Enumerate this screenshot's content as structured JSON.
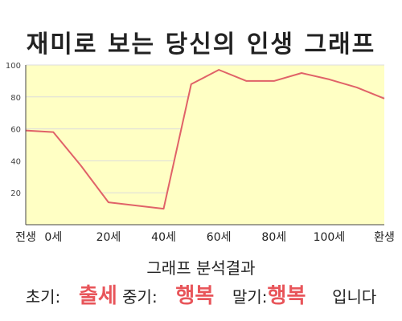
{
  "title": "재미로 보는 당신의 인생 그래프",
  "chart_data": {
    "type": "area",
    "categories": [
      "전생",
      "0세",
      "20세",
      "40세",
      "60세",
      "80세",
      "100세",
      "환생"
    ],
    "x": [
      -10,
      0,
      20,
      40,
      60,
      80,
      100,
      120
    ],
    "series": [
      {
        "x": [
          -10,
          0,
          10,
          20,
          30,
          40,
          50,
          60,
          70,
          80,
          90,
          100,
          110,
          120
        ],
        "values": [
          59,
          58,
          37,
          14,
          12,
          10,
          88,
          97,
          90,
          90,
          95,
          91,
          86,
          79
        ]
      }
    ],
    "y_ticks": [
      20,
      40,
      60,
      80,
      100
    ],
    "ylim": [
      0,
      100
    ],
    "grid": "horizontal",
    "fill_color": "#ffffc4",
    "line_color": "#e06268",
    "plot_background": "#ffffc4"
  },
  "summary": {
    "heading": "그래프 분석결과",
    "early_label": "초기:",
    "early_value": "출세",
    "mid_label": "중기:",
    "mid_value": "행복",
    "late_label": "말기:",
    "late_value": "행복",
    "suffix": "입니다"
  },
  "colors": {
    "highlight": "#e8555a"
  }
}
